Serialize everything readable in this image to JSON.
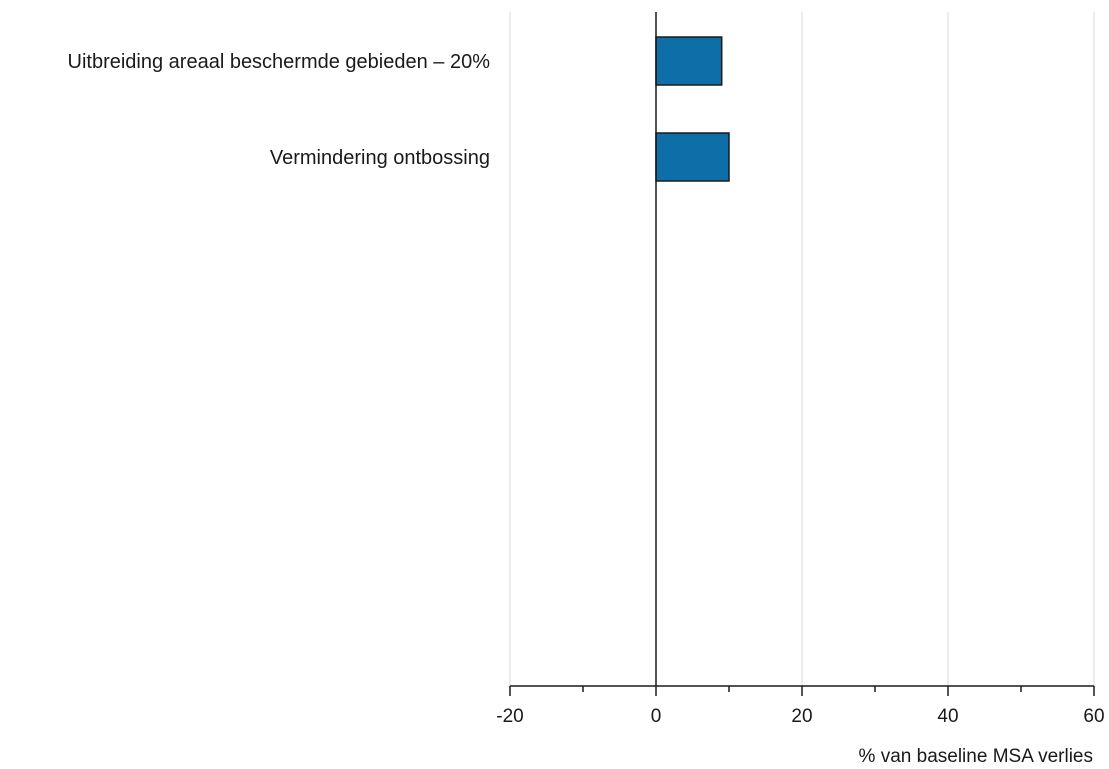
{
  "chart_data": {
    "type": "bar",
    "orientation": "horizontal",
    "categories": [
      "Uitbreiding areaal beschermde gebieden – 20%",
      "Vermindering ontbossing"
    ],
    "values": [
      9,
      10
    ],
    "xlabel": "% van baseline MSA verlies",
    "ylabel": "",
    "title": "",
    "xlim": [
      -20,
      60
    ],
    "x_ticks": [
      -20,
      0,
      20,
      40,
      60
    ],
    "x_tick_labels": [
      "-20",
      "0",
      "20",
      "40",
      "60"
    ],
    "grid": true,
    "bar_color": "#0e6fa8",
    "bar_edge_color": "#1a1a1a",
    "grid_color": "#d9d9d9"
  }
}
